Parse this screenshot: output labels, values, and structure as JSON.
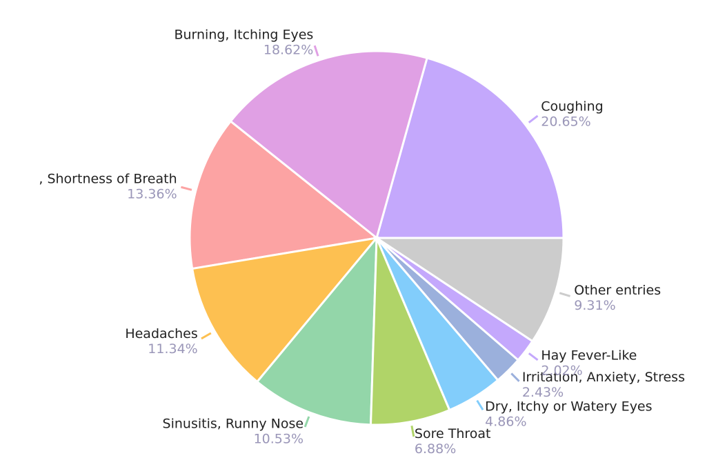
{
  "chart_data": {
    "type": "pie",
    "categories": [
      "Coughing",
      "Burning, Itching Eyes",
      ", Shortness of Breath",
      "Headaches",
      "Sinusitis, Runny Nose",
      "Sore Throat",
      "Dry, Itchy or Watery Eyes",
      "Irritation, Anxiety, Stress",
      "Hay Fever-Like",
      "Other entries"
    ],
    "values": [
      20.65,
      18.62,
      13.36,
      11.34,
      10.53,
      6.88,
      4.86,
      2.43,
      2.02,
      9.31
    ],
    "value_labels": [
      "20.65%",
      "18.62%",
      "13.36%",
      "11.34%",
      "10.53%",
      "6.88%",
      "4.86%",
      "2.43%",
      "2.02%",
      "9.31%"
    ],
    "colors": [
      "#c4a8fc",
      "#e0a0e4",
      "#fca3a3",
      "#fdc051",
      "#93d6a9",
      "#b0d468",
      "#82cdfb",
      "#9bb0dc",
      "#c4a8fc",
      "#cccccc"
    ]
  }
}
